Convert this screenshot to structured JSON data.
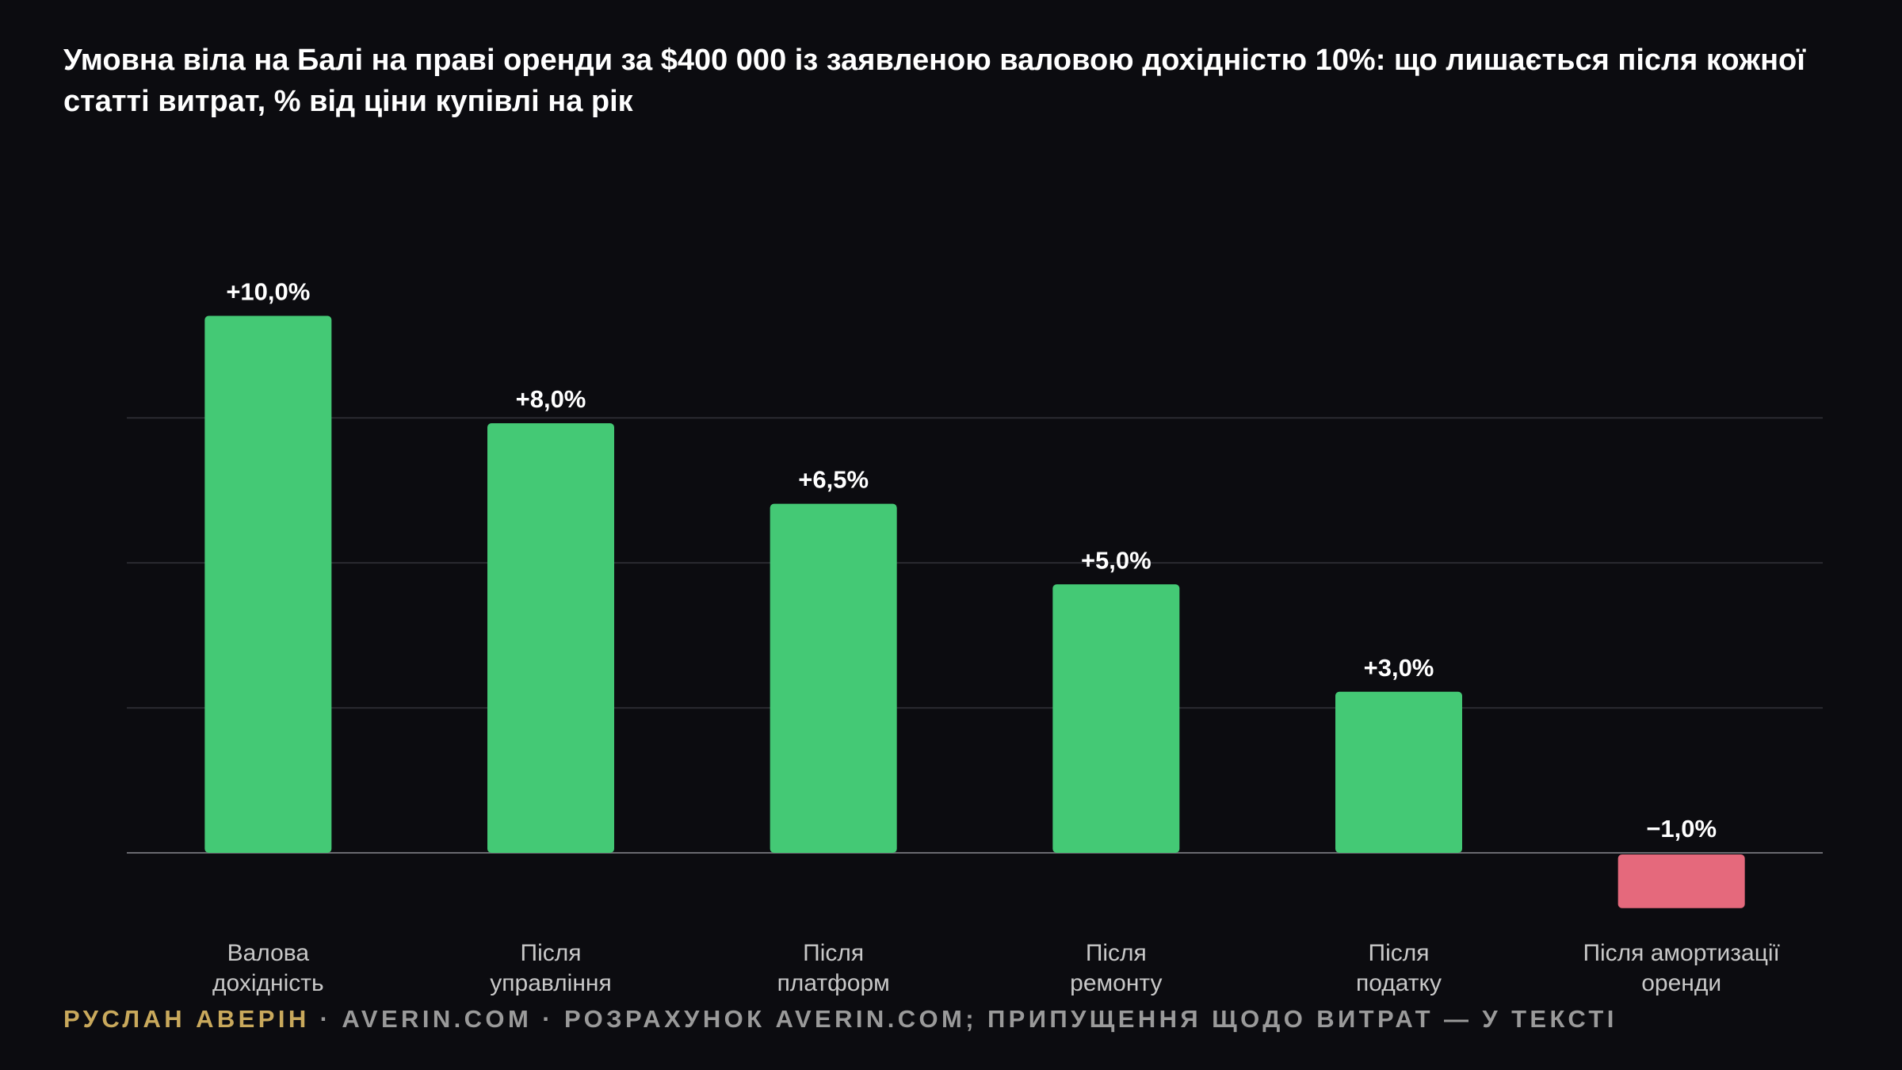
{
  "title": "Умовна віла на Балі на праві оренди за $400 000 із заявленою валовою дохідністю 10%: що лишається після кожної статті витрат, % від ціни купівлі на рік",
  "footer": {
    "author": "РУСЛАН АВЕРІН",
    "separator": "·",
    "site": "AVERIN.COM",
    "source": "РОЗРАХУНОК AVERIN.COM; ПРИПУЩЕННЯ ЩОДО ВИТРАТ — У ТЕКСТІ"
  },
  "colors": {
    "background": "#0c0c10",
    "positive": "#44c975",
    "negative": "#e5697c",
    "grid": "#2a2a30",
    "axis": "#6a6a70",
    "category_text": "#c8c8c8",
    "value_text": "#ffffff",
    "author": "#c9a95c"
  },
  "chart_data": {
    "type": "bar",
    "categories": [
      [
        "Валова",
        "дохідність"
      ],
      [
        "Після",
        "управління"
      ],
      [
        "Після",
        "платформ"
      ],
      [
        "Після",
        "ремонту"
      ],
      [
        "Після",
        "податку"
      ],
      [
        "Після амортизації",
        "оренди"
      ]
    ],
    "values": [
      10.0,
      8.0,
      6.5,
      5.0,
      3.0,
      -1.0
    ],
    "data_labels": [
      "+10,0%",
      "+8,0%",
      "+6,5%",
      "+5,0%",
      "+3,0%",
      "−1,0%"
    ],
    "ylim": [
      -1.0,
      9.5
    ],
    "gridlines": [
      2.7,
      5.4,
      8.1
    ],
    "grid": true,
    "xlabel": "",
    "ylabel": ""
  }
}
